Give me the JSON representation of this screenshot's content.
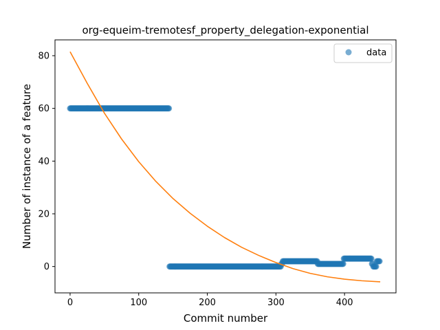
{
  "chart_data": {
    "type": "scatter",
    "title": "org-equeim-tremotesf_property_delegation-exponential",
    "xlabel": "Commit number",
    "ylabel": "Number of instance of a feature",
    "xlim": [
      -22,
      475
    ],
    "ylim": [
      -10,
      86
    ],
    "xticks": [
      0,
      100,
      200,
      300,
      400
    ],
    "yticks": [
      0,
      20,
      40,
      60,
      80
    ],
    "grid": false,
    "legend": {
      "position": "top-right",
      "entries": [
        "data"
      ]
    },
    "colors": {
      "data": "#1f77b4",
      "fit": "#ff7f0e"
    },
    "series": [
      {
        "name": "data",
        "kind": "scatter",
        "segments": [
          {
            "x_start": 0,
            "x_end": 144,
            "y": 60
          },
          {
            "x_start": 145,
            "x_end": 307,
            "y": 0
          },
          {
            "x_start": 308,
            "x_end": 309,
            "y": 1
          },
          {
            "x_start": 310,
            "x_end": 360,
            "y": 2
          },
          {
            "x_start": 361,
            "x_end": 398,
            "y": 1
          },
          {
            "x_start": 399,
            "x_end": 439,
            "y": 3
          },
          {
            "x_start": 440,
            "x_end": 441,
            "y": 1
          },
          {
            "x_start": 442,
            "x_end": 446,
            "y": 0
          },
          {
            "x_start": 447,
            "x_end": 451,
            "y": 2
          }
        ]
      },
      {
        "name": "",
        "kind": "line",
        "model": "exponential",
        "points": [
          [
            0,
            81.5
          ],
          [
            25,
            69.5
          ],
          [
            50,
            58.2
          ],
          [
            75,
            48.4
          ],
          [
            100,
            39.8
          ],
          [
            125,
            32.3
          ],
          [
            150,
            25.8
          ],
          [
            175,
            20.2
          ],
          [
            200,
            15.3
          ],
          [
            225,
            11.0
          ],
          [
            250,
            7.3
          ],
          [
            275,
            4.2
          ],
          [
            300,
            1.5
          ],
          [
            325,
            -0.8
          ],
          [
            350,
            -2.6
          ],
          [
            375,
            -3.9
          ],
          [
            400,
            -4.8
          ],
          [
            425,
            -5.4
          ],
          [
            452,
            -5.8
          ]
        ]
      }
    ]
  }
}
